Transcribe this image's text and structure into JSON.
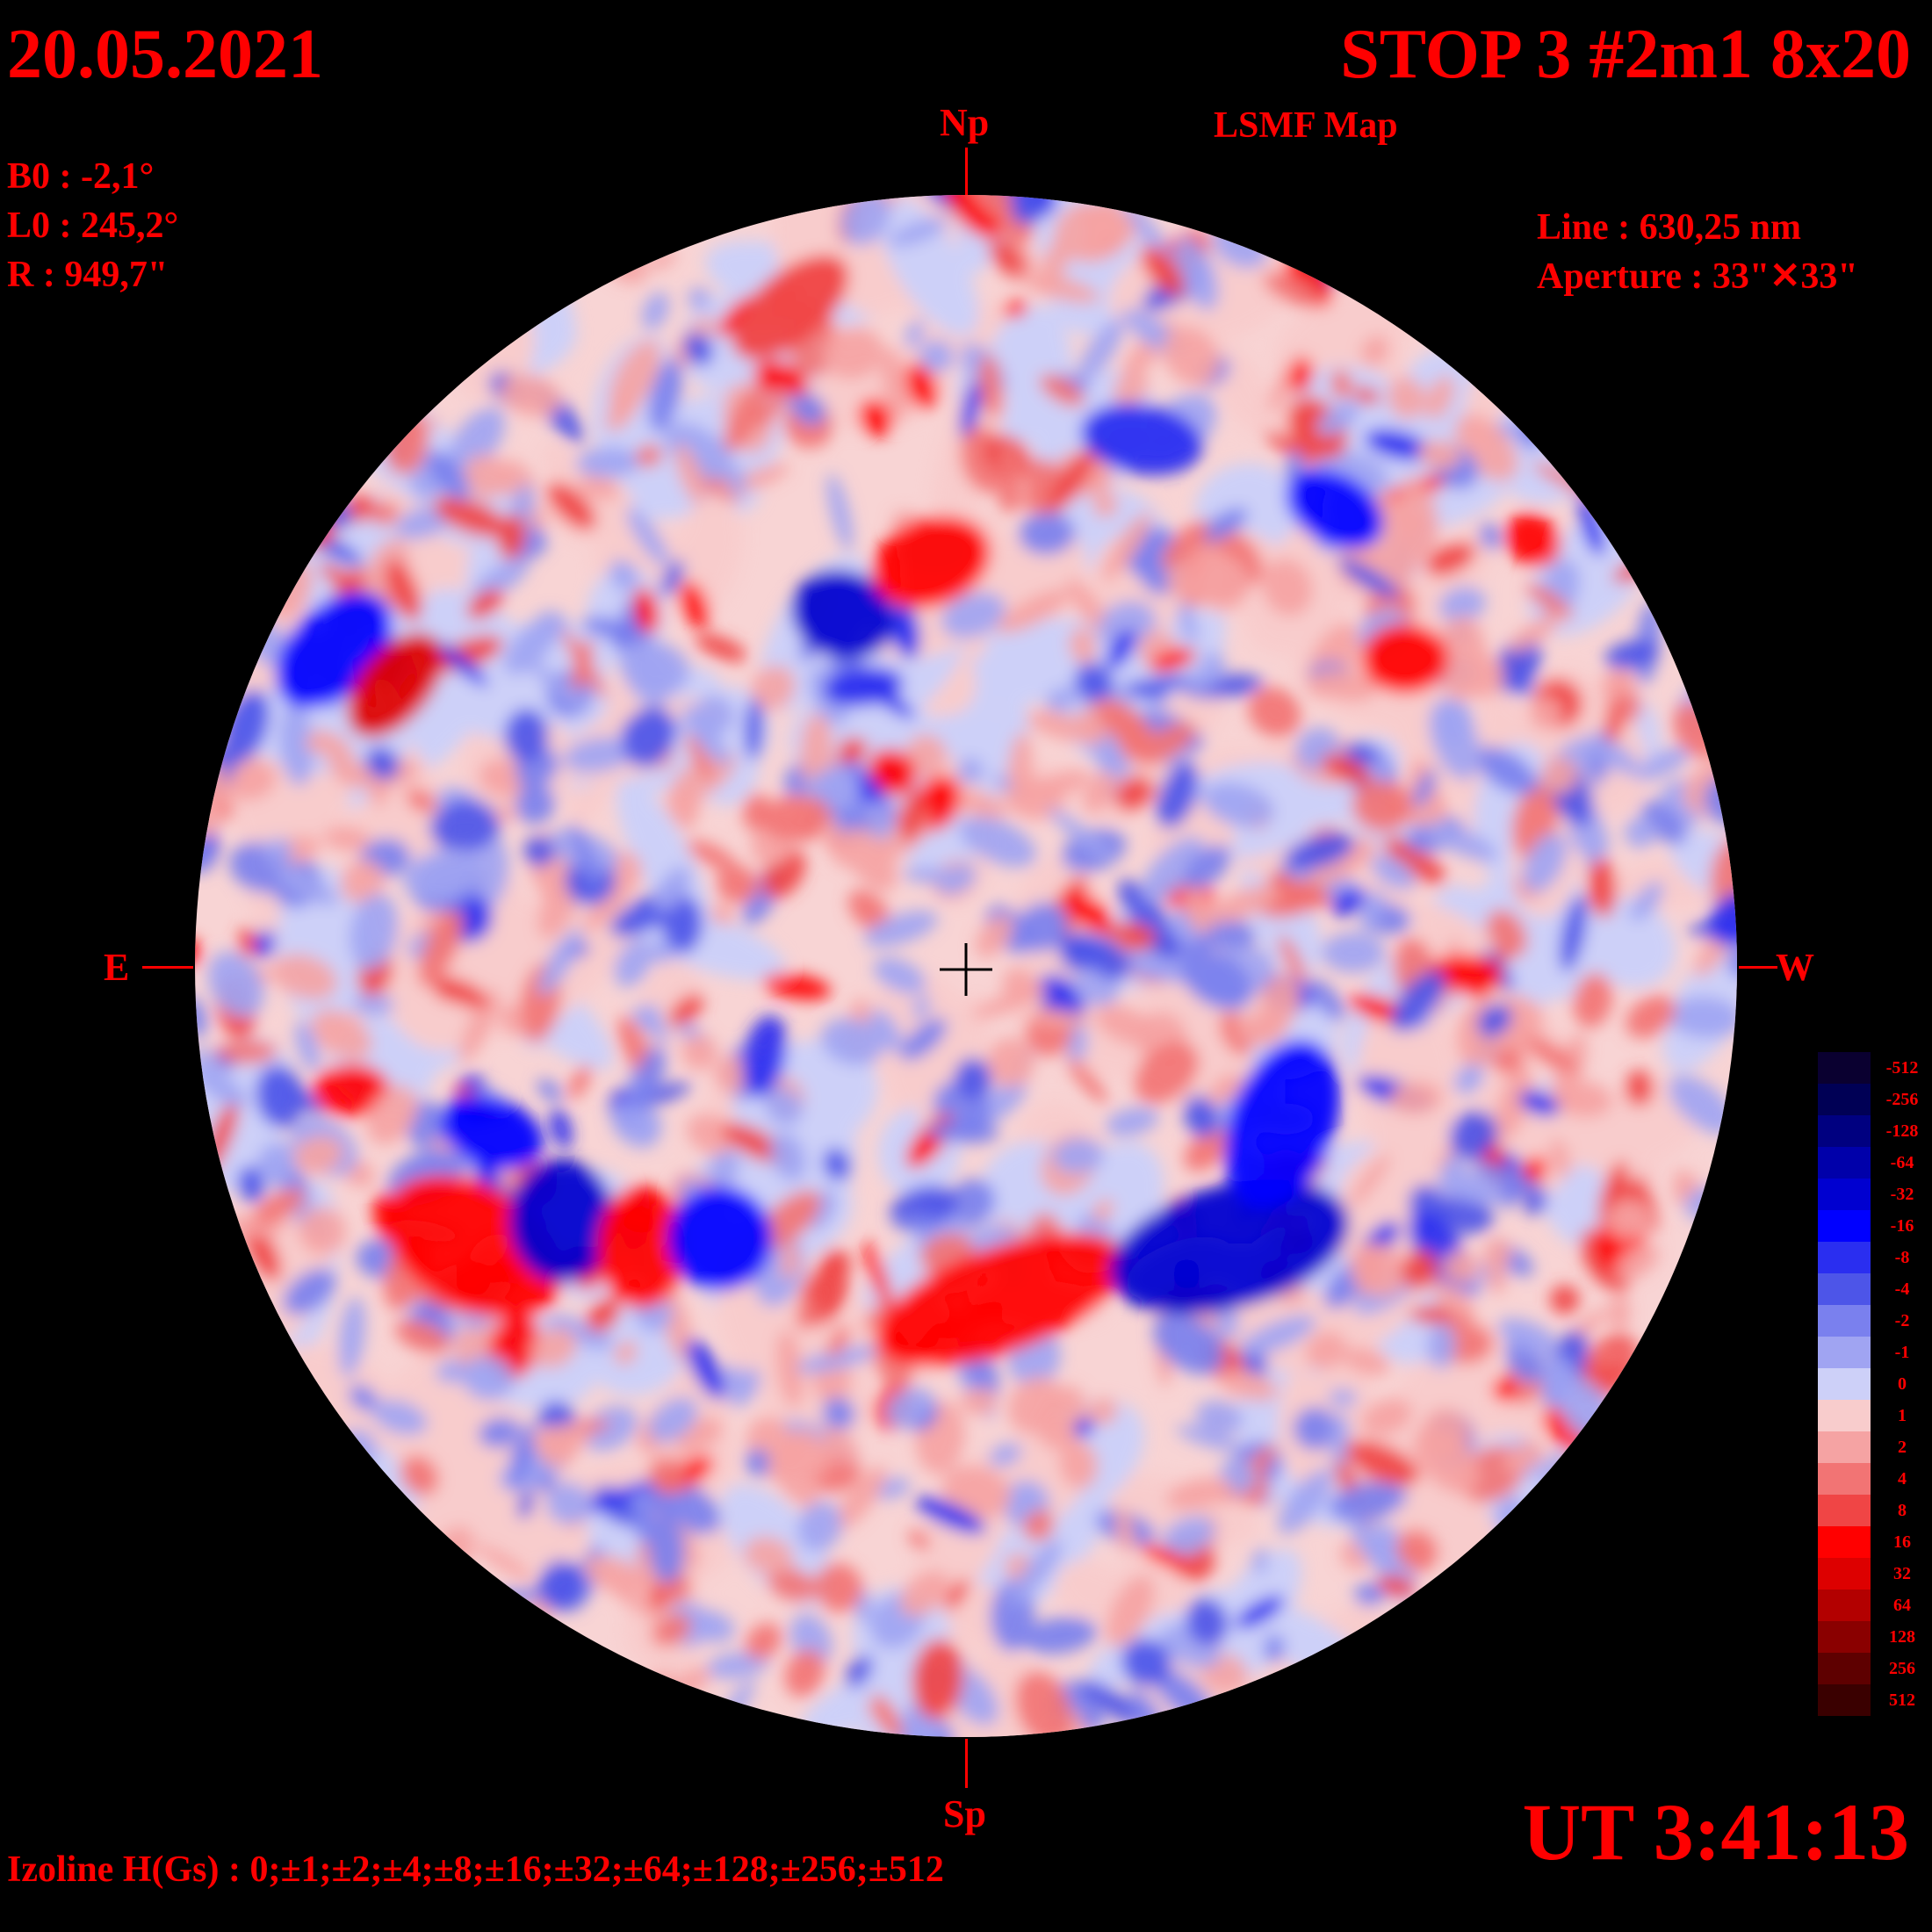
{
  "header": {
    "date": "20.05.2021",
    "title": "STOP 3 #2m1 8x20",
    "subtitle": "LSMF  Map",
    "params": [
      "B0 : -2,1°",
      "L0 : 245,2°",
      "R  : 949,7\""
    ],
    "line": "Line :  630,25 nm",
    "aperture": "Aperture : 33\"✕33\""
  },
  "directions": {
    "north": "Np",
    "south": "Sp",
    "east": "E",
    "west": "W"
  },
  "footer": {
    "time": "UT 3:41:13",
    "izoline": "Izoline H(Gs) : 0;±1;±2;±4;±8;±16;±32;±64;±128;±256;±512"
  },
  "scale": {
    "levels": [
      {
        "label": "-512",
        "color": "#0a0030"
      },
      {
        "label": "-256",
        "color": "#000055"
      },
      {
        "label": "-128",
        "color": "#000080"
      },
      {
        "label": "-64",
        "color": "#0000aa"
      },
      {
        "label": "-32",
        "color": "#0000d0"
      },
      {
        "label": "-16",
        "color": "#0000ff"
      },
      {
        "label": "-8",
        "color": "#2a2ef0"
      },
      {
        "label": "-4",
        "color": "#4d55e8"
      },
      {
        "label": "-2",
        "color": "#7a80ee"
      },
      {
        "label": "-1",
        "color": "#a0a4f2"
      },
      {
        "label": "0",
        "color": "#cdd0f8"
      },
      {
        "label": "1",
        "color": "#f8cccc"
      },
      {
        "label": "2",
        "color": "#f5a3a3"
      },
      {
        "label": "4",
        "color": "#f27474"
      },
      {
        "label": "8",
        "color": "#f04545"
      },
      {
        "label": "16",
        "color": "#ff0000"
      },
      {
        "label": "32",
        "color": "#dd0000"
      },
      {
        "label": "64",
        "color": "#b30000"
      },
      {
        "label": "128",
        "color": "#8a0000"
      },
      {
        "label": "256",
        "color": "#5e0000"
      },
      {
        "label": "512",
        "color": "#3a0000"
      }
    ]
  }
}
